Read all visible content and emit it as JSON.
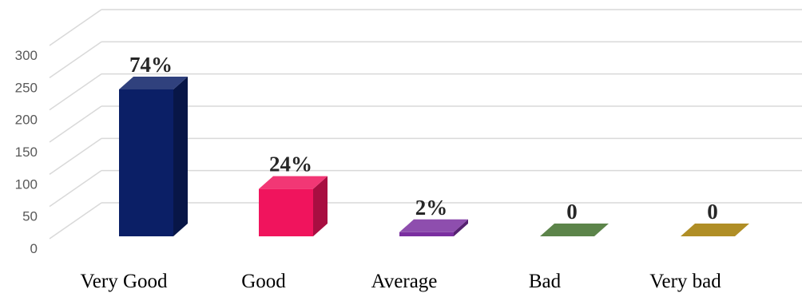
{
  "chart_data": {
    "type": "bar",
    "categories": [
      "Very Good",
      "Good",
      "Average",
      "Bad",
      "Very bad"
    ],
    "values": [
      248,
      80,
      7,
      0,
      0
    ],
    "data_labels": [
      "74%",
      "24%",
      "2%",
      "0",
      "0"
    ],
    "colors": [
      "#0b1f66",
      "#f0145d",
      "#7a2fa0",
      "#3f6e2a",
      "#a27a00"
    ],
    "ylim": [
      0,
      300
    ],
    "yticks": [
      0,
      50,
      100,
      150,
      200,
      250,
      300
    ],
    "grid": true,
    "legend": "none",
    "style": "3d-column"
  }
}
